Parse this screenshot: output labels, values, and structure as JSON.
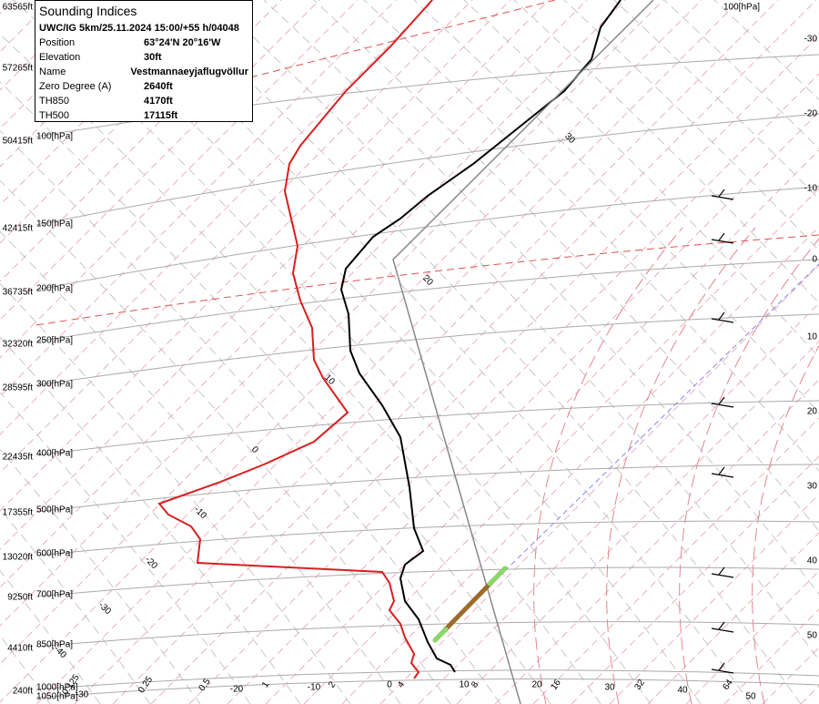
{
  "info_box": {
    "title": "Sounding Indices",
    "subtitle": "UWC/IG 5km/25.11.2024 15:00/+55 h/04048",
    "rows": [
      [
        "Position",
        "63°24'N 20°16'W"
      ],
      [
        "Elevation",
        "30ft"
      ],
      [
        "Name",
        "Vestmannaeyjaflugvöllur"
      ],
      [
        "Zero Degree (A)",
        "2640ft"
      ],
      [
        "TH850",
        "4170ft"
      ],
      [
        "TH500",
        "17115ft"
      ]
    ]
  },
  "altitude_labels": [
    "63565ft",
    "57265ft",
    "50415ft",
    "42415ft",
    "36735ft",
    "32320ft",
    "28595ft",
    "22435ft",
    "17355ft",
    "13020ft",
    "9250ft",
    "4410ft",
    "240ft"
  ],
  "pressure_labels": [
    "100[hPa]",
    "150[hPa]",
    "200[hPa]",
    "250[hPa]",
    "300[hPa]",
    "400[hPa]",
    "500[hPa]",
    "600[hPa]",
    "700[hPa]",
    "850[hPa]",
    "1000[hPa]",
    "1050[hPa]"
  ],
  "top_right_label": "100[hPa]",
  "right_temperature_labels": [
    "-30",
    "-20",
    "-10",
    "0",
    "10",
    "20",
    "30",
    "40",
    "50"
  ],
  "bottom_temperature_labels": [
    "-30",
    "-20",
    "-10",
    "0",
    "10",
    "20",
    "30",
    "40",
    "50"
  ],
  "mixing_ratio_labels": [
    "0.125",
    "0.25",
    "0.5",
    "1",
    "2",
    "4",
    "8",
    "16",
    "32",
    "64"
  ],
  "isotherm_labels": [
    "30",
    "20",
    "10",
    "0",
    "-10",
    "-20",
    "-30",
    "-40"
  ]
}
